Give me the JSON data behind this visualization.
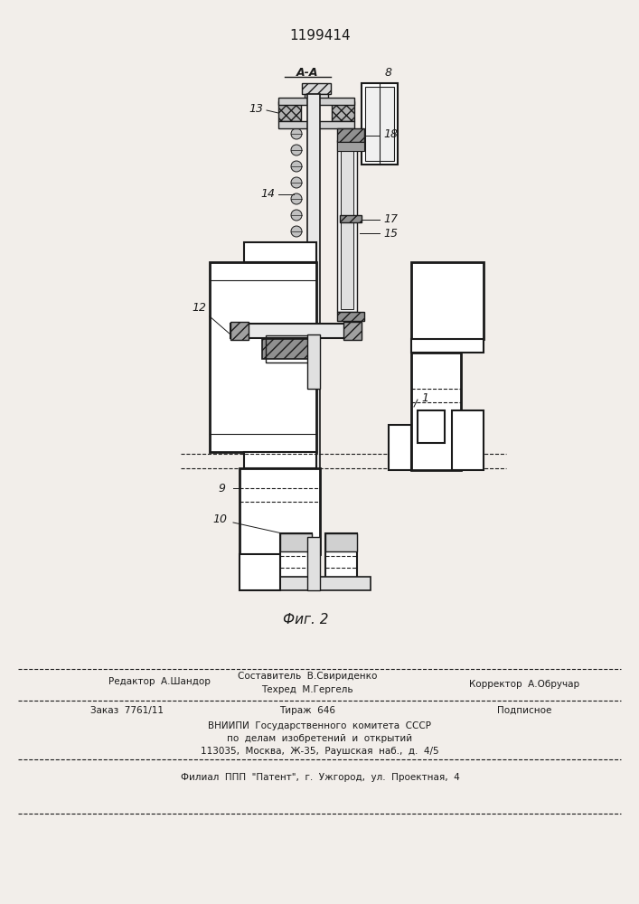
{
  "patent_number": "1199414",
  "figure_label": "Фиг. 2",
  "section_label": "A-A",
  "bg_color": "#f2eeea",
  "line_color": "#1a1a1a",
  "footer": {
    "line1_left": "Редактор  А.Шандор",
    "line1_center_top": "Составитель  В.Свириденко",
    "line1_center_bot": "Техред  М.Гергель",
    "line1_right": "Корректор  А.Обручар",
    "line2_left": "Заказ  7761/11",
    "line2_center": "Тираж  646",
    "line2_right": "Подписное",
    "line3": "ВНИИПИ  Государственного  комитета  СССР",
    "line4": "по  делам  изобретений  и  открытий",
    "line5": "113035,  Москва,  Ж-35,  Раушская  наб.,  д.  4/5",
    "line6": "Филиал  ППП  \"Патент\",  г.  Ужгород,  ул.  Проектная,  4"
  }
}
